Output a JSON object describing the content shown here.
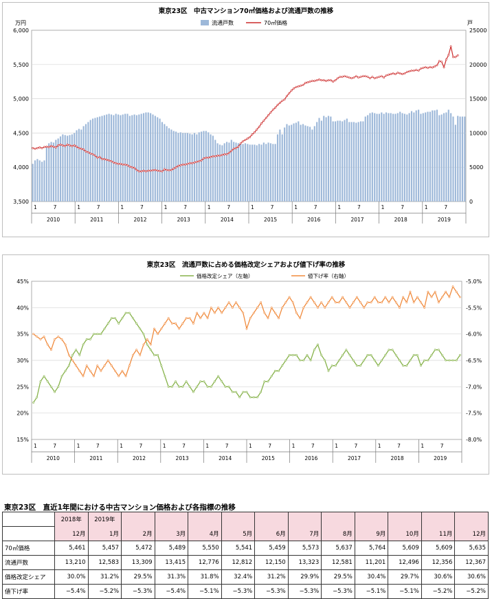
{
  "chart_data": [
    {
      "type": "bar+line",
      "title": "東京23区　中古マンション70㎡価格および流通戸数の推移",
      "left_unit": "万円",
      "right_unit": "戸",
      "ylim_left": [
        3500,
        6000
      ],
      "ylim_right": [
        0,
        25000
      ],
      "left_ticks": [
        "3,500",
        "4,000",
        "4,500",
        "5,000",
        "5,500",
        "6,000"
      ],
      "right_ticks": [
        "0",
        "5000",
        "10000",
        "15000",
        "20000",
        "25000"
      ],
      "x_month_ticks": [
        "1",
        "7"
      ],
      "years": [
        "2010",
        "2011",
        "2012",
        "2013",
        "2014",
        "2015",
        "2016",
        "2017",
        "2018",
        "2019"
      ],
      "legend": [
        "流通戸数",
        "70㎡価格"
      ],
      "colors": {
        "bars": "#9db8d9",
        "line": "#cc2a2a"
      },
      "series": [
        {
          "name": "流通戸数",
          "axis": "right",
          "values": [
            5500,
            6000,
            6200,
            6000,
            5800,
            6000,
            8000,
            8500,
            8700,
            8600,
            9000,
            9200,
            9500,
            9800,
            9700,
            9600,
            9700,
            9800,
            10000,
            10400,
            10600,
            10500,
            11000,
            11300,
            11600,
            11900,
            12100,
            12200,
            12300,
            12400,
            12500,
            12600,
            12700,
            12800,
            12700,
            12600,
            12800,
            12700,
            12600,
            12700,
            12800,
            12800,
            12500,
            12600,
            12700,
            12600,
            12700,
            12800,
            12900,
            13000,
            13000,
            12900,
            12700,
            12500,
            12300,
            12100,
            11600,
            11300,
            11000,
            10700,
            10500,
            10300,
            10200,
            10000,
            10100,
            10000,
            10000,
            10000,
            9900,
            9800,
            10000,
            9800,
            10100,
            10200,
            10300,
            10300,
            10100,
            9800,
            9600,
            9000,
            8500,
            8300,
            8200,
            8500,
            8700,
            8600,
            9000,
            8700,
            8600,
            8500,
            8600,
            8400,
            8500,
            8400,
            8300,
            8300,
            8300,
            8200,
            8400,
            8300,
            8600,
            8400,
            8600,
            8500,
            8400,
            8400,
            9800,
            10500,
            9800,
            10800,
            11300,
            11100,
            11200,
            11400,
            11500,
            11700,
            11200,
            11300,
            11100,
            11000,
            10900,
            10500,
            11000,
            11600,
            12200,
            11800,
            12500,
            12300,
            12500,
            12400,
            11700,
            11700,
            11800,
            11800,
            11700,
            11900,
            12100,
            11600,
            11600,
            11600,
            11500,
            11600,
            11700,
            11700,
            12400,
            12600,
            12900,
            13000,
            12900,
            12800,
            12800,
            13000,
            12800,
            13000,
            12900,
            12900,
            12800,
            12800,
            12900,
            13100,
            12900,
            12800,
            12700,
            12900,
            13200,
            13000,
            13300,
            13400,
            12800,
            12900,
            13000,
            13100,
            13100,
            13300,
            13300,
            13400,
            12600,
            12700,
            12900,
            13000,
            13400,
            12900,
            12400,
            11200,
            12500,
            12400,
            12400,
            12400
          ]
        },
        {
          "name": "70㎡価格",
          "axis": "left",
          "values": [
            4280,
            4270,
            4280,
            4290,
            4280,
            4295,
            4300,
            4295,
            4310,
            4300,
            4290,
            4320,
            4330,
            4320,
            4310,
            4330,
            4320,
            4310,
            4320,
            4300,
            4280,
            4270,
            4260,
            4230,
            4220,
            4200,
            4190,
            4170,
            4140,
            4150,
            4120,
            4120,
            4110,
            4100,
            4090,
            4070,
            4060,
            4050,
            4050,
            4040,
            4040,
            4030,
            4010,
            4000,
            3990,
            3960,
            3940,
            3940,
            3950,
            3940,
            3950,
            3950,
            3955,
            3960,
            3950,
            3945,
            3940,
            3970,
            3960,
            3955,
            3960,
            3980,
            4000,
            4020,
            4030,
            4040,
            4040,
            4050,
            4060,
            4060,
            4070,
            4080,
            4090,
            4100,
            4130,
            4140,
            4140,
            4150,
            4160,
            4160,
            4170,
            4170,
            4180,
            4190,
            4190,
            4210,
            4240,
            4270,
            4280,
            4300,
            4350,
            4380,
            4400,
            4420,
            4440,
            4480,
            4510,
            4550,
            4590,
            4640,
            4680,
            4720,
            4760,
            4800,
            4840,
            4870,
            4910,
            4940,
            4970,
            4990,
            5040,
            5080,
            5120,
            5150,
            5170,
            5180,
            5190,
            5200,
            5230,
            5240,
            5250,
            5260,
            5260,
            5270,
            5280,
            5270,
            5270,
            5260,
            5270,
            5270,
            5250,
            5270,
            5300,
            5320,
            5320,
            5330,
            5320,
            5310,
            5300,
            5310,
            5330,
            5310,
            5320,
            5330,
            5330,
            5320,
            5300,
            5320,
            5300,
            5310,
            5320,
            5330,
            5310,
            5340,
            5350,
            5360,
            5370,
            5360,
            5380,
            5370,
            5360,
            5370,
            5390,
            5400,
            5410,
            5410,
            5420,
            5410,
            5440,
            5450,
            5460,
            5450,
            5461,
            5457,
            5472,
            5489,
            5550,
            5541,
            5459,
            5573,
            5637,
            5764,
            5609,
            5609,
            5635
          ]
        }
      ]
    },
    {
      "type": "line",
      "title": "東京23区　流通戸数に占める価格改定シェアおよび値下げ率の推移",
      "ylim_left": [
        0.15,
        0.45
      ],
      "ylim_right": [
        -0.08,
        -0.05
      ],
      "left_ticks": [
        "15%",
        "20%",
        "25%",
        "30%",
        "35%",
        "40%",
        "45%"
      ],
      "right_ticks": [
        "-8.0%",
        "-7.5%",
        "-7.0%",
        "-6.5%",
        "-6.0%",
        "-5.5%",
        "-5.0%"
      ],
      "x_month_ticks": [
        "1",
        "7"
      ],
      "years": [
        "2010",
        "2011",
        "2012",
        "2013",
        "2014",
        "2015",
        "2016",
        "2017",
        "2018",
        "2019"
      ],
      "legend": [
        "価格改定シェア（左軸）",
        "値下げ率（右軸）"
      ],
      "colors": {
        "share": "#86b24a",
        "rate": "#f08a3c"
      },
      "series": [
        {
          "name": "価格改定シェア（左軸）",
          "axis": "left",
          "values": [
            0.22,
            0.23,
            0.26,
            0.27,
            0.26,
            0.25,
            0.24,
            0.25,
            0.27,
            0.28,
            0.29,
            0.31,
            0.32,
            0.31,
            0.33,
            0.34,
            0.34,
            0.35,
            0.35,
            0.35,
            0.36,
            0.37,
            0.38,
            0.38,
            0.37,
            0.38,
            0.39,
            0.39,
            0.38,
            0.37,
            0.36,
            0.35,
            0.33,
            0.32,
            0.31,
            0.31,
            0.29,
            0.27,
            0.25,
            0.25,
            0.26,
            0.25,
            0.25,
            0.26,
            0.25,
            0.24,
            0.25,
            0.26,
            0.26,
            0.25,
            0.25,
            0.26,
            0.27,
            0.26,
            0.25,
            0.25,
            0.24,
            0.24,
            0.23,
            0.24,
            0.24,
            0.23,
            0.23,
            0.23,
            0.24,
            0.26,
            0.26,
            0.27,
            0.28,
            0.28,
            0.29,
            0.3,
            0.31,
            0.31,
            0.31,
            0.3,
            0.3,
            0.31,
            0.3,
            0.32,
            0.33,
            0.31,
            0.3,
            0.28,
            0.29,
            0.29,
            0.3,
            0.31,
            0.32,
            0.31,
            0.3,
            0.29,
            0.29,
            0.3,
            0.31,
            0.31,
            0.3,
            0.29,
            0.3,
            0.31,
            0.32,
            0.32,
            0.31,
            0.3,
            0.29,
            0.29,
            0.3,
            0.31,
            0.31,
            0.29,
            0.3,
            0.3,
            0.31,
            0.32,
            0.32,
            0.31,
            0.3,
            0.3,
            0.3,
            0.3,
            0.31
          ]
        },
        {
          "name": "値下げ率（右軸）",
          "axis": "right",
          "values": [
            -0.06,
            -0.0605,
            -0.061,
            -0.0605,
            -0.062,
            -0.063,
            -0.061,
            -0.0605,
            -0.061,
            -0.062,
            -0.064,
            -0.065,
            -0.066,
            -0.067,
            -0.068,
            -0.066,
            -0.067,
            -0.068,
            -0.066,
            -0.067,
            -0.066,
            -0.065,
            -0.066,
            -0.067,
            -0.068,
            -0.067,
            -0.068,
            -0.066,
            -0.064,
            -0.063,
            -0.064,
            -0.062,
            -0.061,
            -0.062,
            -0.059,
            -0.06,
            -0.059,
            -0.058,
            -0.057,
            -0.058,
            -0.058,
            -0.059,
            -0.058,
            -0.057,
            -0.057,
            -0.058,
            -0.056,
            -0.057,
            -0.056,
            -0.057,
            -0.055,
            -0.056,
            -0.055,
            -0.056,
            -0.055,
            -0.054,
            -0.055,
            -0.054,
            -0.055,
            -0.056,
            -0.059,
            -0.057,
            -0.056,
            -0.055,
            -0.054,
            -0.056,
            -0.057,
            -0.055,
            -0.056,
            -0.057,
            -0.055,
            -0.054,
            -0.053,
            -0.054,
            -0.056,
            -0.057,
            -0.055,
            -0.054,
            -0.053,
            -0.054,
            -0.055,
            -0.054,
            -0.055,
            -0.054,
            -0.053,
            -0.054,
            -0.054,
            -0.053,
            -0.054,
            -0.055,
            -0.054,
            -0.053,
            -0.054,
            -0.055,
            -0.054,
            -0.054,
            -0.053,
            -0.054,
            -0.054,
            -0.053,
            -0.054,
            -0.053,
            -0.054,
            -0.055,
            -0.053,
            -0.054,
            -0.052,
            -0.054,
            -0.053,
            -0.054,
            -0.055,
            -0.052,
            -0.053,
            -0.052,
            -0.054,
            -0.053,
            -0.052,
            -0.053,
            -0.051,
            -0.052,
            -0.053
          ]
        }
      ]
    }
  ],
  "table": {
    "title": "東京23区　直近1年間における中古マンション価格および各指標の推移",
    "year_row": [
      "2018年",
      "2019年",
      "",
      "",
      "",
      "",
      "",
      "",
      "",
      "",
      "",
      "",
      ""
    ],
    "month_row": [
      "12月",
      "1月",
      "2月",
      "3月",
      "4月",
      "5月",
      "6月",
      "7月",
      "8月",
      "9月",
      "10月",
      "11月",
      "12月"
    ],
    "rows": [
      {
        "label": "70㎡価格",
        "values": [
          "5,461",
          "5,457",
          "5,472",
          "5,489",
          "5,550",
          "5,541",
          "5,459",
          "5,573",
          "5,637",
          "5,764",
          "5,609",
          "5,609",
          "5,635"
        ]
      },
      {
        "label": "流通戸数",
        "values": [
          "13,210",
          "12,583",
          "13,309",
          "13,415",
          "12,776",
          "12,812",
          "12,150",
          "13,323",
          "12,581",
          "11,201",
          "12,496",
          "12,356",
          "12,367"
        ]
      },
      {
        "label": "価格改定シェア",
        "values": [
          "30.0%",
          "31.2%",
          "29.5%",
          "31.3%",
          "31.8%",
          "32.4%",
          "31.2%",
          "29.9%",
          "29.5%",
          "30.4%",
          "29.7%",
          "30.6%",
          "30.6%"
        ]
      },
      {
        "label": "値下げ率",
        "values": [
          "−5.4%",
          "−5.2%",
          "−5.3%",
          "−5.4%",
          "−5.1%",
          "−5.3%",
          "−5.3%",
          "−5.3%",
          "−5.3%",
          "−5.1%",
          "−5.1%",
          "−5.2%",
          "−5.2%"
        ]
      }
    ]
  }
}
